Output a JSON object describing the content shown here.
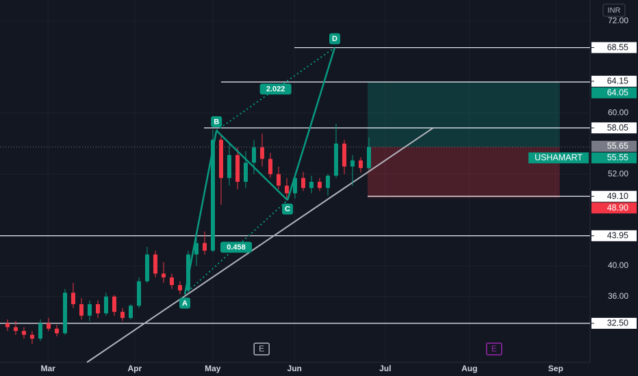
{
  "chart_data": {
    "type": "candlestick",
    "symbol": "USHAMART",
    "currency": "INR",
    "up_color": "#089981",
    "down_color": "#f23645",
    "x": [
      1.83,
      3.83,
      5.83,
      7.83,
      9.83,
      11.83,
      13.83,
      15.83,
      17.83,
      19.83,
      21.83,
      23.83,
      25.83,
      27.83,
      29.83,
      31.83,
      33.83,
      35.83,
      37.83,
      39.83,
      41.83,
      43.83,
      45.83,
      47.83,
      49.83,
      51.83,
      53.83,
      55.83,
      57.83,
      59.83,
      61.83,
      63.83,
      65.83,
      67.83,
      69.83,
      71.83,
      73.83,
      75.83,
      77.83,
      79.83,
      81.83,
      83.83,
      85.83,
      87.83,
      89.83
    ],
    "open": [
      32.5,
      32,
      31.5,
      31,
      30.5,
      32.5,
      31.8,
      31.2,
      36.5,
      35,
      33.5,
      35,
      33.8,
      36,
      34,
      33.2,
      34.8,
      38,
      41.5,
      39,
      38.5,
      37.5,
      36.8,
      41.5,
      43,
      42,
      56.5,
      51.5,
      54.5,
      51,
      53.5,
      55.5,
      54,
      52,
      50.5,
      49.5,
      51.5,
      50.2,
      51,
      50.2,
      51.8,
      56,
      53,
      53.8,
      52.8
    ],
    "high": [
      33,
      32.8,
      32,
      31.5,
      33,
      33.2,
      32.3,
      37,
      37.8,
      35.8,
      35.5,
      35.5,
      36.5,
      36.2,
      34.5,
      35,
      38.5,
      42.5,
      42,
      40.5,
      39,
      38,
      42,
      44,
      44.5,
      57.8,
      57,
      56,
      55.5,
      55,
      56.5,
      57.3,
      54.8,
      53,
      51.5,
      52,
      52.3,
      51.8,
      51.5,
      52,
      58.6,
      56.5,
      54.5,
      54.2,
      56.8
    ],
    "low": [
      31.5,
      31,
      30.5,
      29.8,
      30.2,
      31.5,
      30.8,
      31,
      34.5,
      33,
      32.8,
      33.2,
      33.5,
      33.5,
      32.8,
      33,
      34.5,
      37.8,
      38.5,
      37.8,
      37,
      36.3,
      36.5,
      40,
      41.5,
      41.8,
      48,
      50.5,
      50,
      50.2,
      52,
      53,
      51.5,
      50,
      48.6,
      48.8,
      49.8,
      49.5,
      49.8,
      49.2,
      51.5,
      52,
      50.5,
      52.2,
      52.6
    ],
    "close": [
      32,
      31.5,
      31,
      30.5,
      32.5,
      31.8,
      31.2,
      36.5,
      35,
      33.5,
      35,
      33.8,
      36,
      34,
      33.2,
      34.8,
      38,
      41.5,
      39,
      38.5,
      37.5,
      36.8,
      41.5,
      43,
      42,
      56.5,
      51.5,
      54.5,
      51,
      53.5,
      55.5,
      54,
      52,
      50.5,
      49.5,
      51.5,
      50.2,
      51,
      50.2,
      51.8,
      56,
      53,
      53.8,
      52.8,
      55.55
    ],
    "xlim": [
      0,
      143.67
    ],
    "xticks": [
      {
        "value": 11.7,
        "label": "Mar"
      },
      {
        "value": 32.8,
        "label": "Apr"
      },
      {
        "value": 51.8,
        "label": "May"
      },
      {
        "value": 71.7,
        "label": "Jun"
      },
      {
        "value": 93.8,
        "label": "Jul"
      },
      {
        "value": 114.3,
        "label": "Aug"
      },
      {
        "value": 135.3,
        "label": "Sep"
      }
    ],
    "ylim": [
      27.4,
      74.77
    ],
    "yticks": [
      {
        "value": 72,
        "label": "72.00"
      },
      {
        "value": 60,
        "label": "60.00"
      },
      {
        "value": 52,
        "label": "52.00"
      },
      {
        "value": 40,
        "label": "40.00"
      },
      {
        "value": 36,
        "label": "36.00"
      }
    ],
    "price_labels": [
      {
        "value": 68.55,
        "label": "68.55",
        "kind": "line"
      },
      {
        "value": 64.15,
        "label": "64.15",
        "kind": "plain"
      },
      {
        "value": 64.05,
        "label": "64.05",
        "kind": "target"
      },
      {
        "value": 58.05,
        "label": "58.05",
        "kind": "line"
      },
      {
        "value": 55.65,
        "label": "55.65",
        "kind": "last"
      },
      {
        "value": 55.55,
        "label": "55.55",
        "kind": "price"
      },
      {
        "value": 49.1,
        "label": "49.10",
        "kind": "line"
      },
      {
        "value": 48.9,
        "label": "48.90",
        "kind": "stop"
      },
      {
        "value": 43.95,
        "label": "43.95",
        "kind": "line"
      },
      {
        "value": 32.5,
        "label": "32.50",
        "kind": "line"
      }
    ],
    "position": {
      "x": [
        89.5,
        136.3
      ],
      "entry": 55.55,
      "target": 64.05,
      "stop": 48.9
    },
    "trendline": {
      "x": [
        21.17,
        105.5
      ],
      "y": [
        27.4,
        58.06
      ]
    },
    "pattern": {
      "points": [
        {
          "label": "A",
          "x": 45,
          "y": 36.3
        },
        {
          "label": "B",
          "x": 52.7,
          "y": 57.7
        },
        {
          "label": "C",
          "x": 70,
          "y": 48.6
        },
        {
          "label": "D",
          "x": 81.5,
          "y": 68.55
        }
      ],
      "ratios": [
        {
          "value": 0.458,
          "from": 0,
          "to": 2
        },
        {
          "value": 2.022,
          "from": 1,
          "to": 3
        }
      ]
    },
    "events": [
      {
        "x": 63.7,
        "label": "E",
        "color": "#b2b5be"
      },
      {
        "x": 120.3,
        "label": "E",
        "color": "#9c27b0"
      }
    ]
  }
}
